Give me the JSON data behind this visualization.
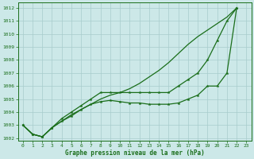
{
  "title": "Graphe pression niveau de la mer (hPa)",
  "bg_color": "#cce8e8",
  "grid_color": "#a8cccc",
  "line_color": "#1a6e1a",
  "xlim": [
    -0.5,
    23.5
  ],
  "ylim": [
    1001.8,
    1012.4
  ],
  "yticks": [
    1002,
    1003,
    1004,
    1005,
    1006,
    1007,
    1008,
    1009,
    1010,
    1011,
    1012
  ],
  "xticks": [
    0,
    1,
    2,
    3,
    4,
    5,
    6,
    7,
    8,
    9,
    10,
    11,
    12,
    13,
    14,
    15,
    16,
    17,
    18,
    19,
    20,
    21,
    22,
    23
  ],
  "line1_x": [
    0,
    1,
    2,
    3,
    4,
    5,
    6,
    7,
    8,
    9,
    10,
    11,
    12,
    13,
    14,
    15,
    16,
    17,
    18,
    19,
    20,
    21,
    22
  ],
  "line1_y": [
    1003.0,
    1002.3,
    1002.1,
    1002.8,
    1003.3,
    1003.8,
    1004.2,
    1004.6,
    1005.0,
    1005.3,
    1005.5,
    1005.8,
    1006.2,
    1006.7,
    1007.2,
    1007.8,
    1008.5,
    1009.2,
    1009.8,
    1010.3,
    1010.8,
    1011.3,
    1012.0
  ],
  "line2_x": [
    0,
    1,
    2,
    3,
    4,
    5,
    6,
    7,
    8,
    9,
    10,
    11,
    12,
    13,
    14,
    15,
    16,
    17,
    18,
    19,
    20,
    21,
    22
  ],
  "line2_y": [
    1003.0,
    1002.3,
    1002.1,
    1002.8,
    1003.5,
    1004.0,
    1004.5,
    1005.0,
    1005.5,
    1005.5,
    1005.5,
    1005.5,
    1005.5,
    1005.5,
    1005.5,
    1005.5,
    1006.0,
    1006.5,
    1007.0,
    1008.0,
    1009.5,
    1011.0,
    1012.0
  ],
  "line3_x": [
    0,
    1,
    2,
    3,
    4,
    5,
    6,
    7,
    8,
    9,
    10,
    11,
    12,
    13,
    14,
    15,
    16,
    17,
    18,
    19,
    20,
    21,
    22
  ],
  "line3_y": [
    1003.0,
    1002.3,
    1002.1,
    1002.8,
    1003.3,
    1003.7,
    1004.2,
    1004.6,
    1004.8,
    1004.9,
    1004.8,
    1004.7,
    1004.7,
    1004.6,
    1004.6,
    1004.6,
    1004.7,
    1005.0,
    1005.3,
    1006.0,
    1006.0,
    1007.0,
    1012.0
  ]
}
